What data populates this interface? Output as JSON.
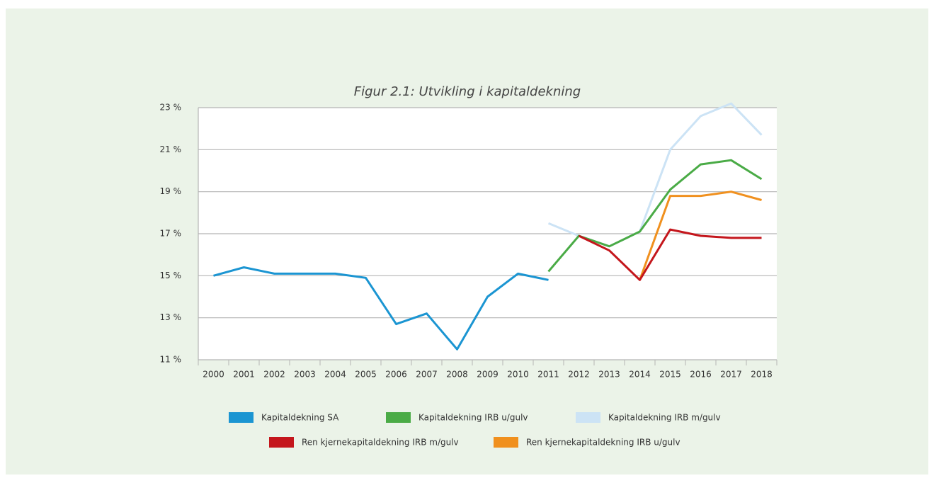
{
  "chart_data": {
    "type": "line",
    "title": "Figur 2.1: Utvikling i kapitaldekning",
    "categories": [
      "2000",
      "2001",
      "2002",
      "2003",
      "2004",
      "2005",
      "2006",
      "2007",
      "2008",
      "2009",
      "2010",
      "2011",
      "2012",
      "2013",
      "2014",
      "2015",
      "2016",
      "2017",
      "2018"
    ],
    "ylim": [
      11,
      23
    ],
    "yticks": [
      {
        "value": 11,
        "label": "11 %"
      },
      {
        "value": 13,
        "label": "13 %"
      },
      {
        "value": 15,
        "label": "15 %"
      },
      {
        "value": 17,
        "label": "17 %"
      },
      {
        "value": 19,
        "label": "19 %"
      },
      {
        "value": 21,
        "label": "21 %"
      },
      {
        "value": 23,
        "label": "23 %"
      }
    ],
    "grid": true,
    "series": [
      {
        "name": "Kapitaldekning SA",
        "color": "#1b95d2",
        "values": [
          15.0,
          15.4,
          15.1,
          15.1,
          15.1,
          14.9,
          12.7,
          13.2,
          11.5,
          14.0,
          15.1,
          14.8,
          null,
          null,
          null,
          null,
          null,
          null,
          null
        ]
      },
      {
        "name": "Kapitaldekning IRB u/gulv",
        "color": "#4aab46",
        "values": [
          null,
          null,
          null,
          null,
          null,
          null,
          null,
          null,
          null,
          null,
          null,
          15.2,
          16.9,
          16.4,
          17.1,
          19.1,
          20.3,
          20.5,
          19.6
        ]
      },
      {
        "name": "Kapitaldekning IRB m/gulv",
        "color": "#cce3f5",
        "values": [
          null,
          null,
          null,
          null,
          null,
          null,
          null,
          null,
          null,
          null,
          null,
          17.5,
          16.9,
          16.4,
          17.1,
          21.0,
          22.6,
          23.2,
          21.7
        ]
      },
      {
        "name": "Ren kjernekapitaldekning IRB m/gulv",
        "color": "#c4161c",
        "values": [
          null,
          null,
          null,
          null,
          null,
          null,
          null,
          null,
          null,
          null,
          null,
          null,
          16.9,
          16.2,
          14.8,
          17.2,
          16.9,
          16.8,
          16.8
        ]
      },
      {
        "name": "Ren kjernekapitaldekning IRB u/gulv",
        "color": "#f0901e",
        "values": [
          null,
          null,
          null,
          null,
          null,
          null,
          null,
          null,
          null,
          null,
          null,
          null,
          null,
          null,
          14.8,
          18.8,
          18.8,
          19.0,
          18.6
        ]
      }
    ]
  }
}
